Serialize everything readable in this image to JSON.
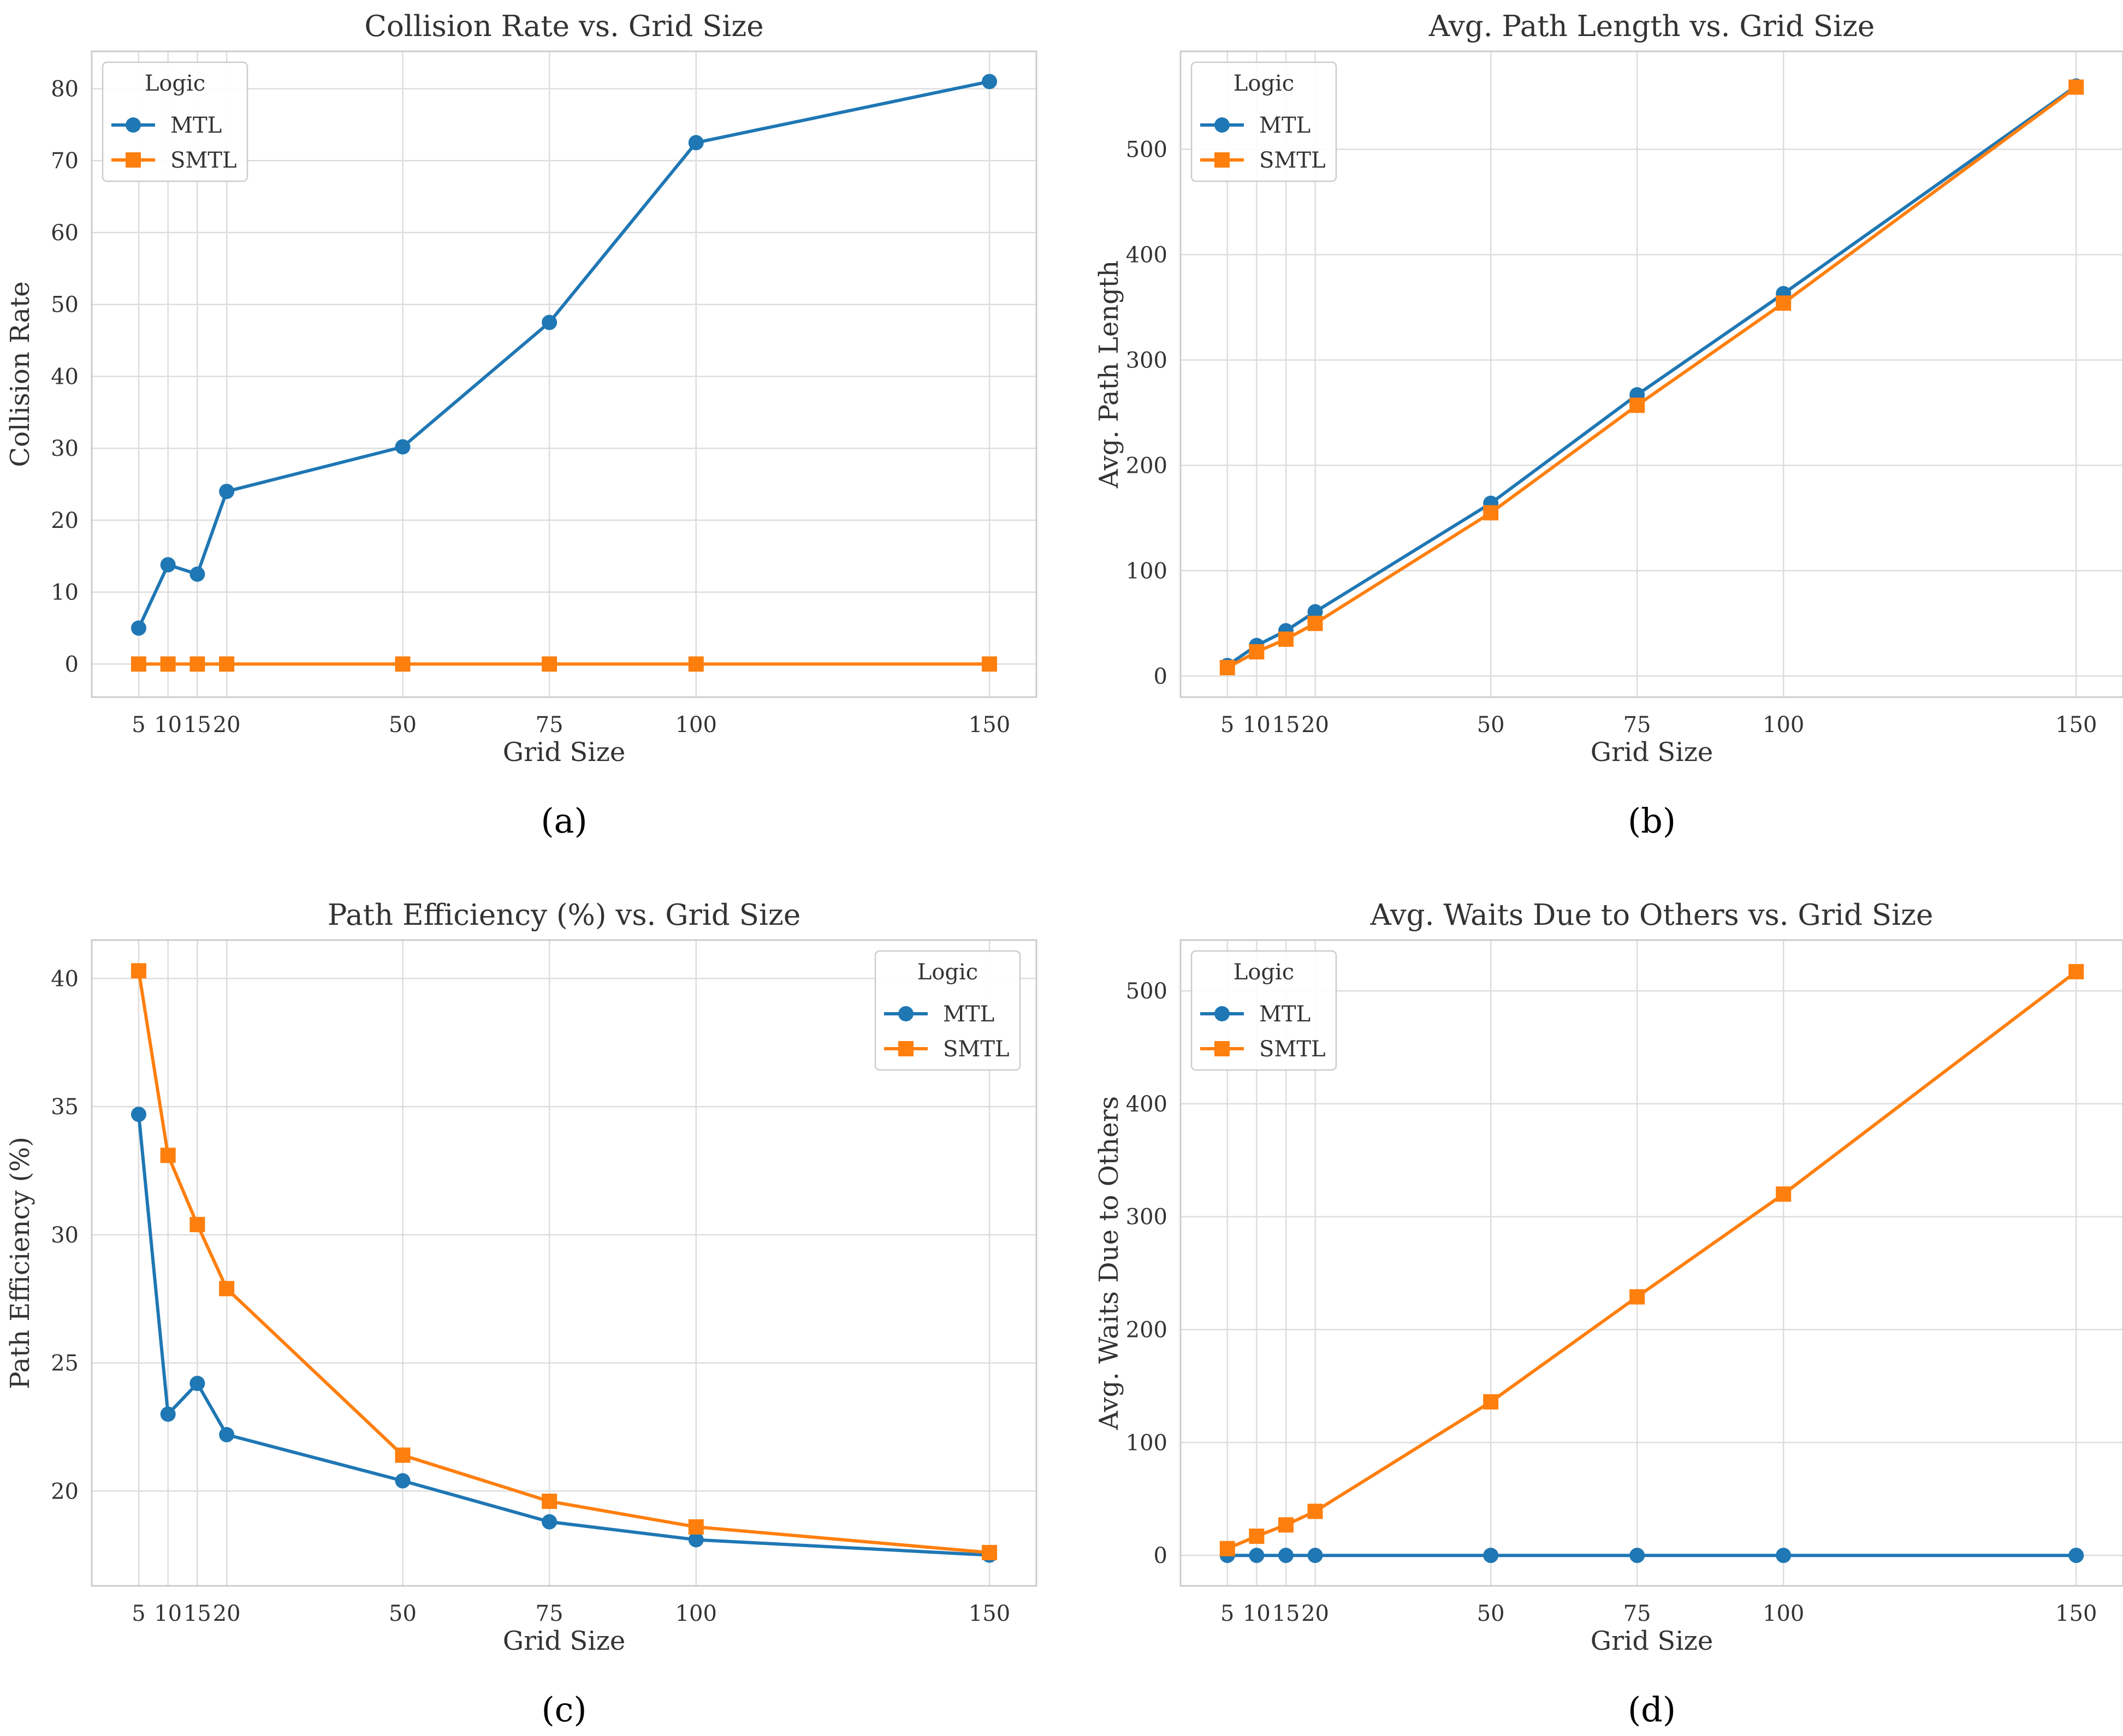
{
  "colors": {
    "mtl": "#1f77b4",
    "smtl": "#ff7f0e",
    "grid": "#dddddd",
    "axis": "#cccccc",
    "text": "#333333"
  },
  "legend_title": "Logic",
  "chart_data": [
    {
      "type": "line",
      "panel_label": "(a)",
      "title": "Collision Rate vs. Grid Size",
      "xlabel": "Grid Size",
      "ylabel": "Collision Rate",
      "x": [
        5,
        10,
        15,
        20,
        50,
        75,
        100,
        150
      ],
      "xticks": [
        5,
        10,
        15,
        20,
        50,
        75,
        100,
        150
      ],
      "xlim": [
        -3,
        158
      ],
      "yticks": [
        0,
        10,
        20,
        30,
        40,
        50,
        60,
        70,
        80
      ],
      "ylim": [
        -4.6,
        85.2
      ],
      "legend_position": "top-left",
      "series": [
        {
          "name": "MTL",
          "marker": "circle",
          "values": [
            5.0,
            13.8,
            12.5,
            24.0,
            30.2,
            47.5,
            72.5,
            81.0
          ]
        },
        {
          "name": "SMTL",
          "marker": "square",
          "values": [
            0,
            0,
            0,
            0,
            0,
            0,
            0,
            0
          ]
        }
      ]
    },
    {
      "type": "line",
      "panel_label": "(b)",
      "title": "Avg. Path Length vs. Grid Size",
      "xlabel": "Grid Size",
      "ylabel": "Avg. Path Length",
      "x": [
        5,
        10,
        15,
        20,
        50,
        75,
        100,
        150
      ],
      "xticks": [
        5,
        10,
        15,
        20,
        50,
        75,
        100,
        150
      ],
      "xlim": [
        -3,
        158
      ],
      "yticks": [
        0,
        100,
        200,
        300,
        400,
        500
      ],
      "ylim": [
        -20,
        593
      ],
      "legend_position": "top-left",
      "series": [
        {
          "name": "MTL",
          "marker": "circle",
          "values": [
            10,
            29,
            43,
            61,
            164,
            267,
            363,
            560
          ]
        },
        {
          "name": "SMTL",
          "marker": "square",
          "values": [
            8,
            23,
            35,
            50,
            155,
            257,
            354,
            559
          ]
        }
      ]
    },
    {
      "type": "line",
      "panel_label": "(c)",
      "title": "Path Efficiency (%) vs. Grid Size",
      "xlabel": "Grid Size",
      "ylabel": "Path Efficiency (%)",
      "x": [
        5,
        10,
        15,
        20,
        50,
        75,
        100,
        150
      ],
      "xticks": [
        5,
        10,
        15,
        20,
        50,
        75,
        100,
        150
      ],
      "xlim": [
        -3,
        158
      ],
      "yticks": [
        20,
        25,
        30,
        35,
        40
      ],
      "ylim": [
        16.3,
        41.5
      ],
      "legend_position": "top-right",
      "series": [
        {
          "name": "MTL",
          "marker": "circle",
          "values": [
            34.7,
            23.0,
            24.2,
            22.2,
            20.4,
            18.8,
            18.1,
            17.5
          ]
        },
        {
          "name": "SMTL",
          "marker": "square",
          "values": [
            40.3,
            33.1,
            30.4,
            27.9,
            21.4,
            19.6,
            18.6,
            17.6
          ]
        }
      ]
    },
    {
      "type": "line",
      "panel_label": "(d)",
      "title": "Avg. Waits Due to Others vs. Grid Size",
      "xlabel": "Grid Size",
      "ylabel": "Avg. Waits Due to Others",
      "x": [
        5,
        10,
        15,
        20,
        50,
        75,
        100,
        150
      ],
      "xticks": [
        5,
        10,
        15,
        20,
        50,
        75,
        100,
        150
      ],
      "xlim": [
        -3,
        158
      ],
      "yticks": [
        0,
        100,
        200,
        300,
        400,
        500
      ],
      "ylim": [
        -27,
        545
      ],
      "legend_position": "top-left",
      "series": [
        {
          "name": "MTL",
          "marker": "circle",
          "values": [
            0,
            0,
            0,
            0,
            0,
            0,
            0,
            0
          ]
        },
        {
          "name": "SMTL",
          "marker": "square",
          "values": [
            6,
            17,
            27,
            39,
            136,
            229,
            320,
            517
          ]
        }
      ]
    }
  ]
}
